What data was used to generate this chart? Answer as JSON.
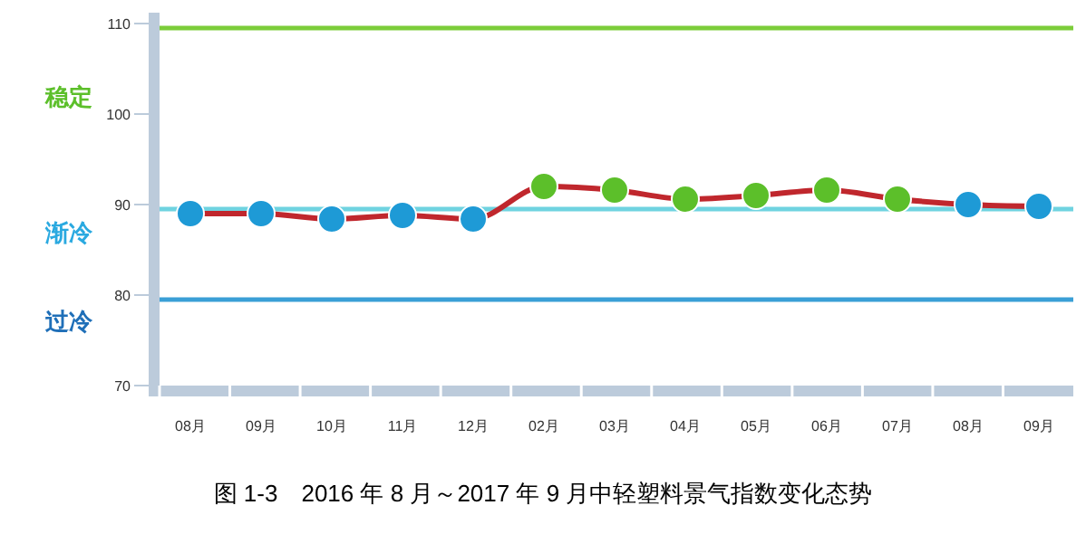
{
  "chart_data": {
    "type": "line",
    "title": "图 1-3　2016 年 8 月～2017 年 9 月中轻塑料景气指数变化态势",
    "categories": [
      "08月",
      "09月",
      "10月",
      "11月",
      "12月",
      "02月",
      "03月",
      "04月",
      "05月",
      "06月",
      "07月",
      "08月",
      "09月"
    ],
    "series": [
      {
        "color": "#c0272d",
        "values": [
          89.0,
          89.0,
          88.4,
          88.8,
          88.4,
          92.0,
          91.6,
          90.6,
          91.0,
          91.6,
          90.6,
          90.0,
          89.8
        ],
        "colors": [
          "#1e9ad6",
          "#1e9ad6",
          "#1e9ad6",
          "#1e9ad6",
          "#1e9ad6",
          "#5cbf2a",
          "#5cbf2a",
          "#5cbf2a",
          "#5cbf2a",
          "#5cbf2a",
          "#5cbf2a",
          "#1e9ad6",
          "#1e9ad6"
        ]
      }
    ],
    "ylim": [
      70,
      110
    ],
    "yticks": [
      70,
      80,
      90,
      100,
      110
    ],
    "marker": "circle",
    "grid": false,
    "ref_lines": [
      {
        "axis": "y",
        "value": 109.5,
        "color": "#7ccd3a"
      },
      {
        "axis": "y",
        "value": 89.5,
        "color": "#6fd3e0"
      },
      {
        "axis": "y",
        "value": 79.5,
        "color": "#3a9fd6"
      }
    ],
    "annotations": [
      "稳定",
      "渐冷",
      "过冷"
    ]
  }
}
